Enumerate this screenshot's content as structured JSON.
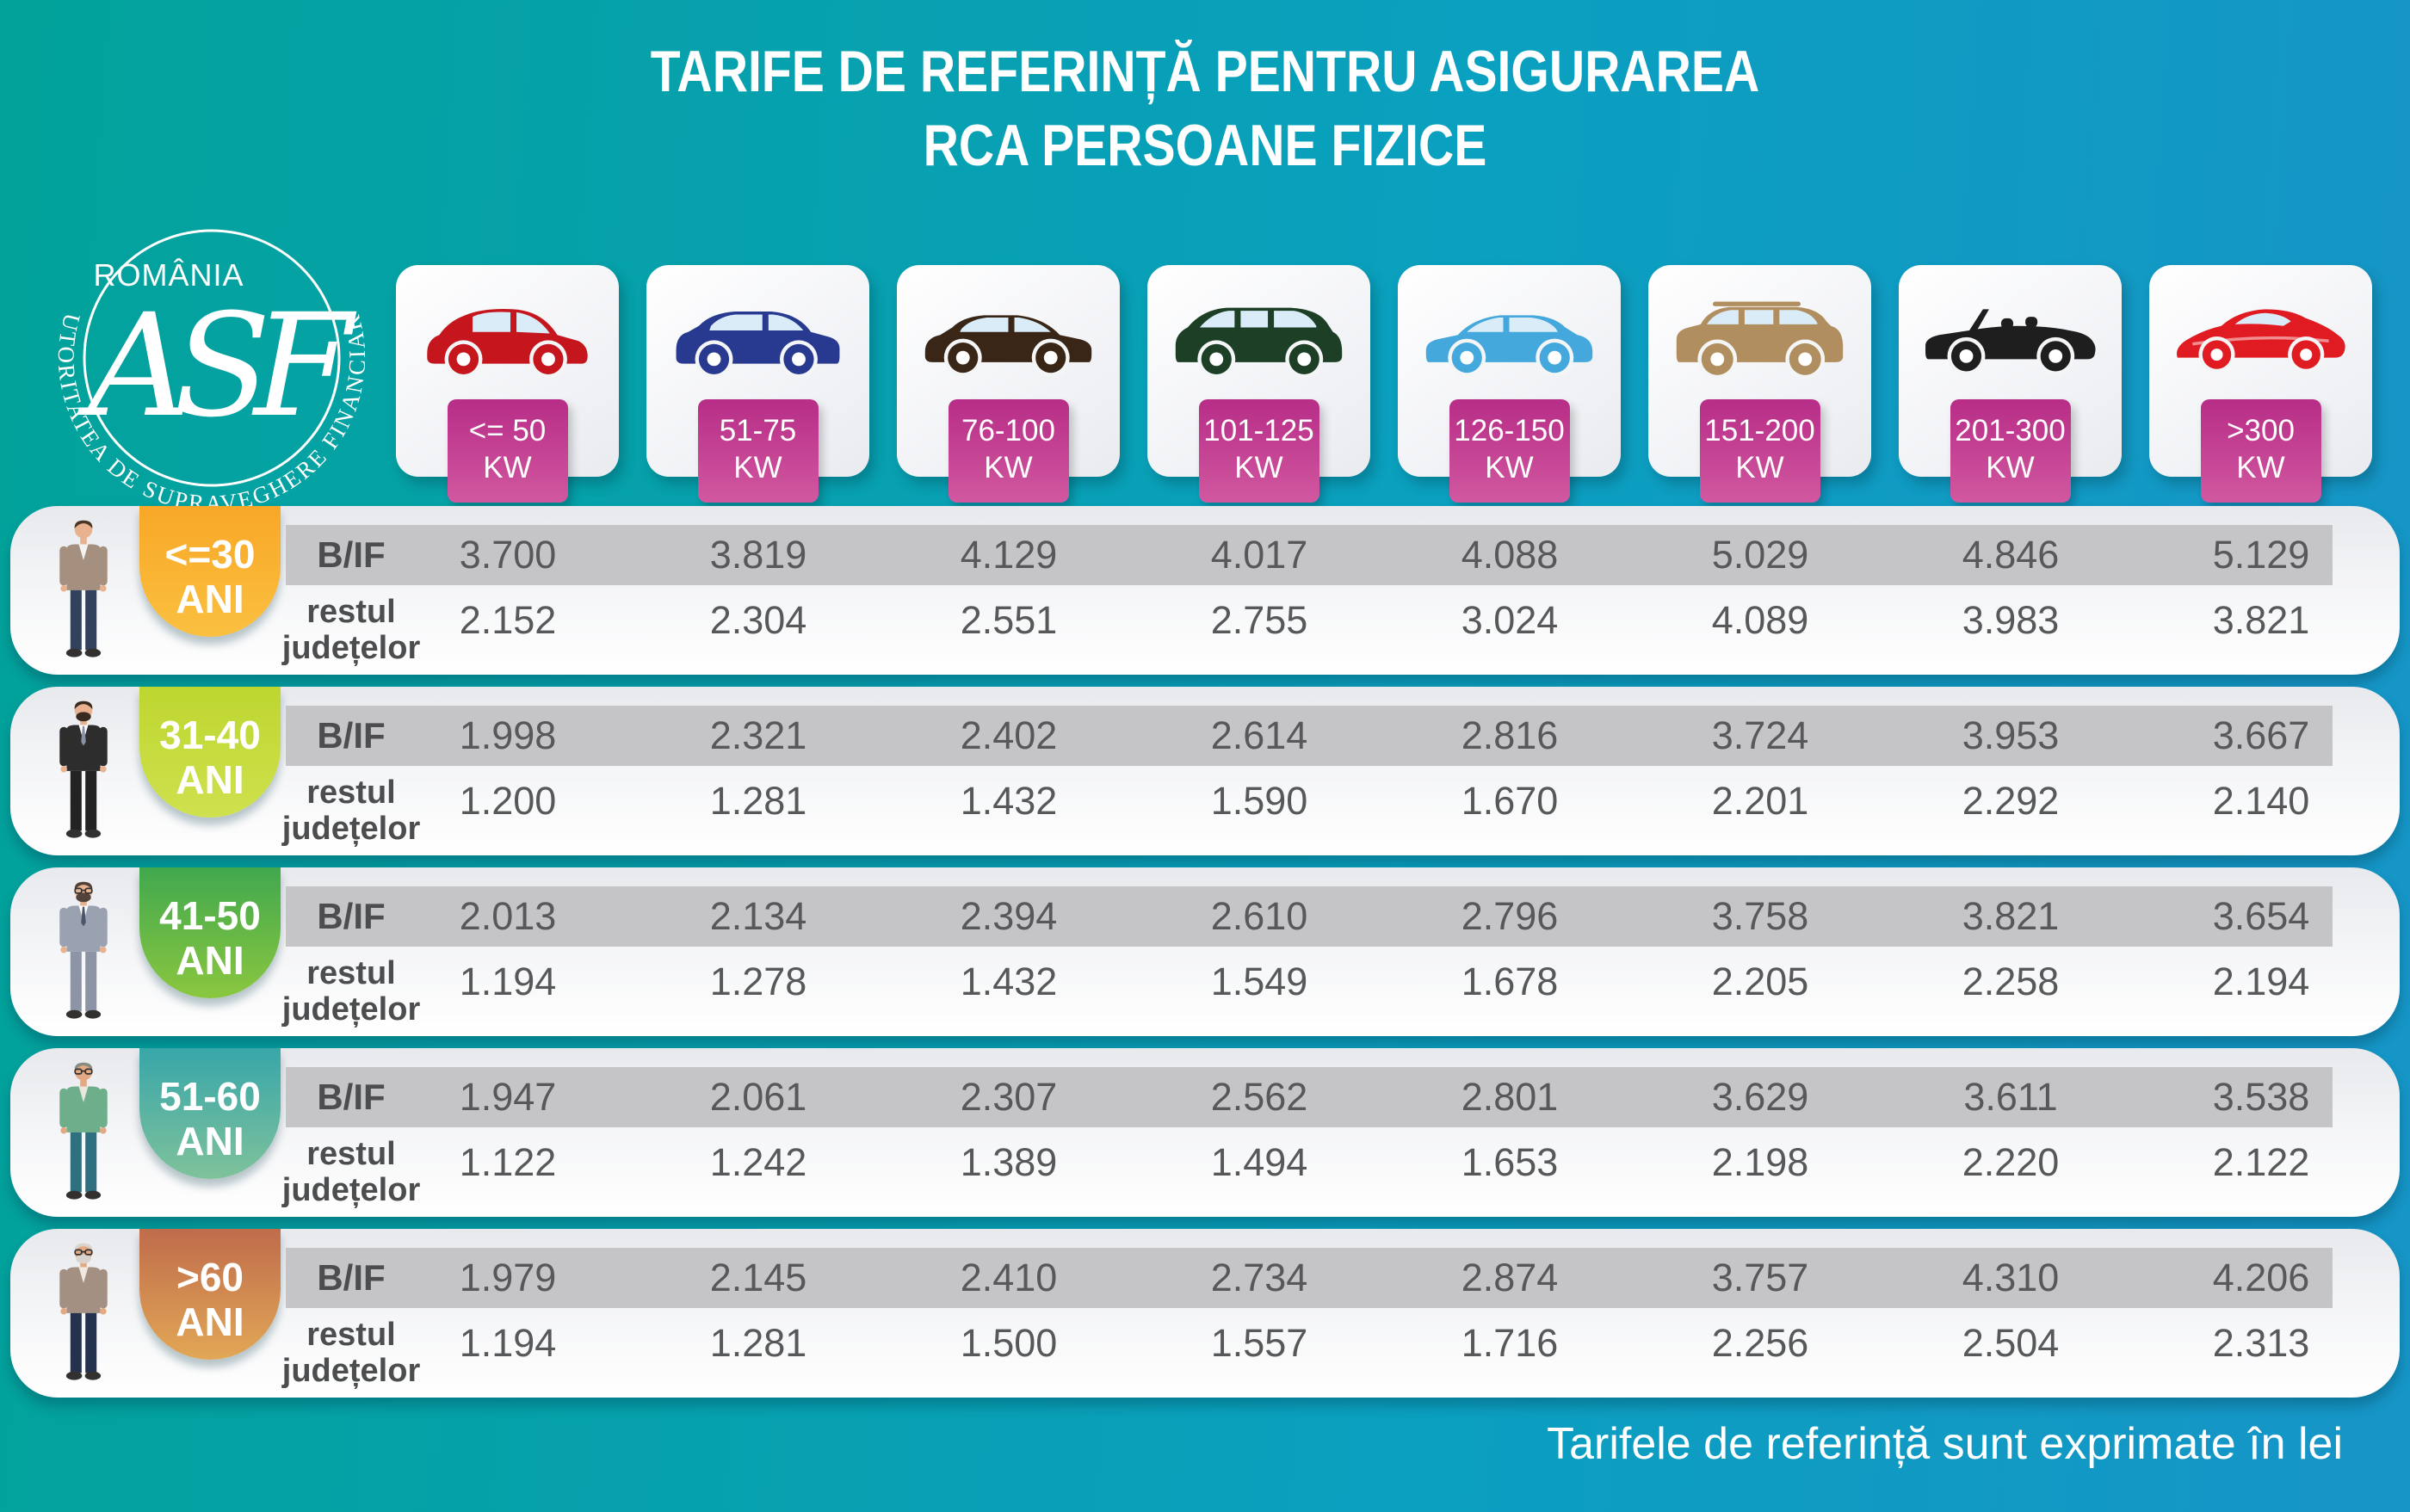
{
  "title": {
    "line1": "TARIFE DE REFERINȚĂ PENTRU ASIGURAREA",
    "line2": "RCA PERSOANE FIZICE"
  },
  "logo": {
    "country": "ROMÂNIA",
    "monogram": "ASF",
    "ring_text": "AUTORITATEA DE SUPRAVEGHERE FINANCIARĂ"
  },
  "labels": {
    "bif": "B/IF",
    "rest1": "restul",
    "rest2": "județelor",
    "ani": "ANI",
    "kw": "KW"
  },
  "footer": "Tarifele de referință sunt exprimate în lei",
  "colors": {
    "background_left": "#02a29a",
    "background_right": "#1695c7",
    "kw_badge_top": "#b72d87",
    "kw_badge_bottom": "#d158a0",
    "band_gray": "#c5c5c7",
    "value_text": "#57585a"
  },
  "chart_data": {
    "type": "table",
    "title": "TARIFE DE REFERINȚĂ PENTRU ASIGURAREA RCA PERSOANE FIZICE",
    "unit_note": "Tarifele de referință sunt exprimate în lei",
    "columns_kw": [
      "<= 50",
      "51-75",
      "76-100",
      "101-125",
      "126-150",
      "151-200",
      "201-300",
      ">300"
    ],
    "car_types": [
      "city",
      "hatch",
      "sedan",
      "minivan",
      "sedan",
      "suv",
      "convertible",
      "sports"
    ],
    "car_colors": [
      "#c5161d",
      "#283a8f",
      "#3a2617",
      "#1c3f26",
      "#44a8dc",
      "#b08e5f",
      "#1e1e1e",
      "#e11b22"
    ],
    "car_facing": [
      "right",
      "right",
      "right",
      "left",
      "left",
      "left",
      "left",
      "left"
    ],
    "row_kinds": [
      "B/IF",
      "restul județelor"
    ],
    "age_groups": [
      {
        "age": "<=30",
        "badge_top": "#f8a727",
        "badge_bottom": "#fbc040",
        "avatar": {
          "jacket": "#a5907f",
          "shirt": "#f2f2f2",
          "pants": "#32415c",
          "skin": "#e8b28e",
          "hair": "#4a3527",
          "beard": "transparent",
          "glasses": "transparent",
          "tie": "transparent"
        },
        "bif": [
          "3.700",
          "3.819",
          "4.129",
          "4.017",
          "4.088",
          "5.029",
          "4.846",
          "5.129"
        ],
        "rest": [
          "2.152",
          "2.304",
          "2.551",
          "2.755",
          "3.024",
          "4.089",
          "3.983",
          "3.821"
        ]
      },
      {
        "age": "31-40",
        "badge_top": "#bed62f",
        "badge_bottom": "#cfe14e",
        "avatar": {
          "jacket": "#2e2d2d",
          "shirt": "#ffffff",
          "pants": "#232323",
          "skin": "#e8b28e",
          "hair": "#3a2b20",
          "beard": "#3a2b20",
          "glasses": "transparent",
          "tie": "#8a93a5"
        },
        "bif": [
          "1.998",
          "2.321",
          "2.402",
          "2.614",
          "2.816",
          "3.724",
          "3.953",
          "3.667"
        ],
        "rest": [
          "1.200",
          "1.281",
          "1.432",
          "1.590",
          "1.670",
          "2.201",
          "2.292",
          "2.140"
        ]
      },
      {
        "age": "41-50",
        "badge_top": "#41a84e",
        "badge_bottom": "#8ac73f",
        "avatar": {
          "jacket": "#9aa2b2",
          "shirt": "#ffffff",
          "pants": "#8d94a6",
          "skin": "#e8b28e",
          "hair": "#53423a",
          "beard": "#53423a",
          "glasses": "#333333",
          "tie": "#4a5568"
        },
        "bif": [
          "2.013",
          "2.134",
          "2.394",
          "2.610",
          "2.796",
          "3.758",
          "3.821",
          "3.654"
        ],
        "rest": [
          "1.194",
          "1.278",
          "1.432",
          "1.549",
          "1.678",
          "2.205",
          "2.258",
          "2.194"
        ]
      },
      {
        "age": "51-60",
        "badge_top": "#38a6a9",
        "badge_bottom": "#7fc29b",
        "avatar": {
          "jacket": "#6fae8b",
          "shirt": "#e9e6df",
          "pants": "#2e6f80",
          "skin": "#e3a983",
          "hair": "#8b8b85",
          "beard": "transparent",
          "glasses": "#333333",
          "tie": "transparent"
        },
        "bif": [
          "1.947",
          "2.061",
          "2.307",
          "2.562",
          "2.801",
          "3.629",
          "3.611",
          "3.538"
        ],
        "rest": [
          "1.122",
          "1.242",
          "1.389",
          "1.494",
          "1.653",
          "2.198",
          "2.220",
          "2.122"
        ]
      },
      {
        "age": ">60",
        "badge_top": "#bf6c4b",
        "badge_bottom": "#e2a756",
        "avatar": {
          "jacket": "#a39083",
          "shirt": "#efe9e2",
          "pants": "#25324e",
          "skin": "#e3a983",
          "hair": "#d8d4cd",
          "beard": "#d8d4cd",
          "glasses": "#333333",
          "tie": "transparent"
        },
        "bif": [
          "1.979",
          "2.145",
          "2.410",
          "2.734",
          "2.874",
          "3.757",
          "4.310",
          "4.206"
        ],
        "rest": [
          "1.194",
          "1.281",
          "1.500",
          "1.557",
          "1.716",
          "2.256",
          "2.504",
          "2.313"
        ]
      }
    ]
  }
}
